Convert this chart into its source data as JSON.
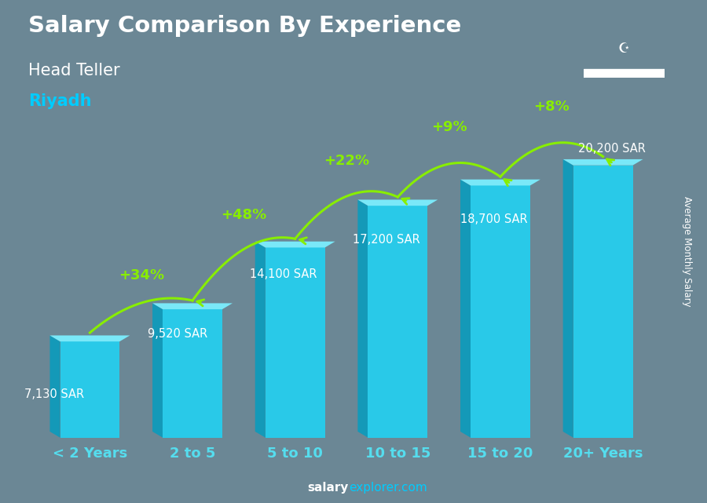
{
  "categories": [
    "< 2 Years",
    "2 to 5",
    "5 to 10",
    "10 to 15",
    "15 to 20",
    "20+ Years"
  ],
  "values": [
    7130,
    9520,
    14100,
    17200,
    18700,
    20200
  ],
  "salary_labels": [
    "7,130 SAR",
    "9,520 SAR",
    "14,100 SAR",
    "17,200 SAR",
    "18,700 SAR",
    "20,200 SAR"
  ],
  "pct_changes": [
    "+34%",
    "+48%",
    "+22%",
    "+9%",
    "+8%"
  ],
  "bar_face_color": "#29c9e8",
  "bar_left_color": "#1499b8",
  "bar_top_color": "#7ae8f8",
  "title": "Salary Comparison By Experience",
  "subtitle": "Head Teller",
  "city": "Riyadh",
  "city_color": "#00ccff",
  "ylabel": "Average Monthly Salary",
  "pct_color": "#88ee00",
  "salary_label_color": "#ffffff",
  "bg_color": "#6b8795",
  "ylim": [
    0,
    25000
  ],
  "bar_width": 0.58,
  "footer_salary_color": "#ffffff",
  "footer_explorer_color": "#00ccff",
  "x_label_color": "#55ddee"
}
